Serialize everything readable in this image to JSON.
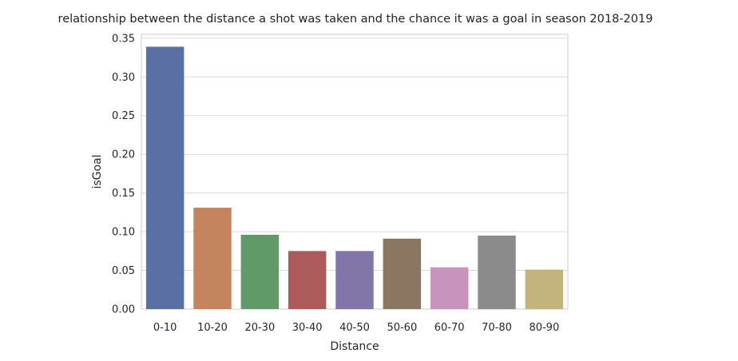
{
  "chart_data": {
    "type": "bar",
    "title": "relationship between the distance a shot was taken and the chance it was a goal in season 2018-2019",
    "xlabel": "Distance",
    "ylabel": "isGoal",
    "categories": [
      "0-10",
      "10-20",
      "20-30",
      "30-40",
      "40-50",
      "50-60",
      "60-70",
      "70-80",
      "80-90"
    ],
    "values": [
      0.339,
      0.131,
      0.096,
      0.075,
      0.075,
      0.091,
      0.054,
      0.095,
      0.051
    ],
    "colors": [
      "#5a6fa3",
      "#c4845e",
      "#619a69",
      "#ad5a5b",
      "#8175a9",
      "#8b7662",
      "#c893bd",
      "#8b8b8b",
      "#c3b47d"
    ],
    "ylim": [
      0,
      0.355
    ],
    "yticks": [
      "0.00",
      "0.05",
      "0.10",
      "0.15",
      "0.20",
      "0.25",
      "0.30",
      "0.35"
    ],
    "grid": true,
    "grid_axis": "y"
  }
}
